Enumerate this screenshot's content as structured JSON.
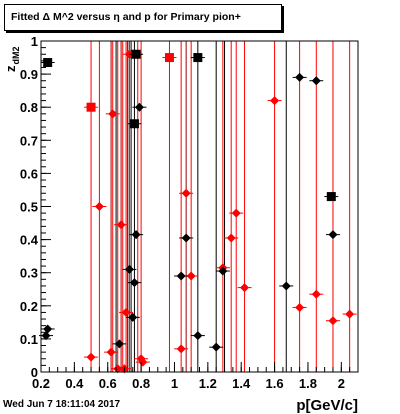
{
  "title": "Fitted Δ M^2 versus η and p for Primary pion+",
  "footer": "Wed Jun  7 18:11:04 2017",
  "chart_data": {
    "type": "scatter",
    "xlabel": "p[GeV/c]",
    "ylabel": "z_dM2",
    "xlim": [
      0.2,
      2.1
    ],
    "ylim": [
      0,
      1
    ],
    "x_ticks": [
      "0.2",
      "0.4",
      "0.6",
      "0.8",
      "1",
      "1.2",
      "1.4",
      "1.6",
      "1.8",
      "2"
    ],
    "y_ticks": [
      "0",
      "0.1",
      "0.2",
      "0.3",
      "0.4",
      "0.5",
      "0.6",
      "0.7",
      "0.8",
      "0.9",
      "1"
    ],
    "colors": {
      "black": "#000000",
      "red": "#ff0000",
      "dark_red": "#a00000"
    },
    "series": [
      {
        "color": "#ff0000",
        "points": [
          {
            "x": 0.5,
            "y": 0.8,
            "m": "square"
          },
          {
            "x": 0.97,
            "y": 0.95,
            "m": "square"
          },
          {
            "x": 0.5,
            "y": 0.045,
            "m": "diamond"
          },
          {
            "x": 0.55,
            "y": 0.5,
            "m": "diamond"
          },
          {
            "x": 0.62,
            "y": 0.06,
            "m": "diamond"
          },
          {
            "x": 0.63,
            "y": 0.78,
            "m": "diamond"
          },
          {
            "x": 0.66,
            "y": 0.01,
            "m": "diamond"
          },
          {
            "x": 0.68,
            "y": 0.445,
            "m": "diamond"
          },
          {
            "x": 0.7,
            "y": 0.01,
            "m": "diamond"
          },
          {
            "x": 0.71,
            "y": 0.18,
            "m": "diamond"
          },
          {
            "x": 0.73,
            "y": 0.96,
            "m": "diamond"
          },
          {
            "x": 0.8,
            "y": 0.04,
            "m": "diamond"
          },
          {
            "x": 0.81,
            "y": 0.03,
            "m": "diamond"
          },
          {
            "x": 1.04,
            "y": 0.07,
            "m": "diamond"
          },
          {
            "x": 1.07,
            "y": 0.54,
            "m": "diamond"
          },
          {
            "x": 1.1,
            "y": 0.29,
            "m": "diamond"
          },
          {
            "x": 1.29,
            "y": 0.315,
            "m": "diamond"
          },
          {
            "x": 1.34,
            "y": 0.405,
            "m": "diamond"
          },
          {
            "x": 1.37,
            "y": 0.48,
            "m": "diamond"
          },
          {
            "x": 1.42,
            "y": 0.255,
            "m": "diamond"
          },
          {
            "x": 1.6,
            "y": 0.82,
            "m": "diamond"
          },
          {
            "x": 1.75,
            "y": 0.195,
            "m": "diamond"
          },
          {
            "x": 1.85,
            "y": 0.235,
            "m": "diamond"
          },
          {
            "x": 1.95,
            "y": 0.155,
            "m": "diamond"
          },
          {
            "x": 2.05,
            "y": 0.175,
            "m": "diamond"
          }
        ]
      },
      {
        "color": "#000000",
        "points": [
          {
            "x": 0.24,
            "y": 0.935,
            "m": "square"
          },
          {
            "x": 0.76,
            "y": 0.75,
            "m": "square"
          },
          {
            "x": 0.77,
            "y": 0.96,
            "m": "square"
          },
          {
            "x": 1.14,
            "y": 0.95,
            "m": "square"
          },
          {
            "x": 1.94,
            "y": 0.53,
            "m": "square"
          },
          {
            "x": 0.23,
            "y": 0.11,
            "m": "diamond"
          },
          {
            "x": 0.24,
            "y": 0.13,
            "m": "diamond"
          },
          {
            "x": 0.67,
            "y": 0.085,
            "m": "diamond"
          },
          {
            "x": 0.73,
            "y": 0.31,
            "m": "diamond"
          },
          {
            "x": 0.75,
            "y": 0.165,
            "m": "diamond"
          },
          {
            "x": 0.76,
            "y": 0.27,
            "m": "diamond"
          },
          {
            "x": 0.77,
            "y": 0.415,
            "m": "diamond"
          },
          {
            "x": 0.79,
            "y": 0.8,
            "m": "diamond"
          },
          {
            "x": 1.04,
            "y": 0.29,
            "m": "diamond"
          },
          {
            "x": 1.07,
            "y": 0.405,
            "m": "diamond"
          },
          {
            "x": 1.14,
            "y": 0.11,
            "m": "diamond"
          },
          {
            "x": 1.25,
            "y": 0.075,
            "m": "diamond"
          },
          {
            "x": 1.29,
            "y": 0.305,
            "m": "diamond"
          },
          {
            "x": 1.67,
            "y": 0.26,
            "m": "diamond"
          },
          {
            "x": 1.75,
            "y": 0.89,
            "m": "diamond"
          },
          {
            "x": 1.85,
            "y": 0.88,
            "m": "diamond"
          },
          {
            "x": 1.95,
            "y": 0.415,
            "m": "diamond"
          }
        ]
      }
    ],
    "vertical_lines": [
      {
        "x": 0.5,
        "color": "#ff0000"
      },
      {
        "x": 0.55,
        "color": "#ff0000"
      },
      {
        "x": 0.62,
        "color": "#a00000"
      },
      {
        "x": 0.63,
        "color": "#ff0000"
      },
      {
        "x": 0.65,
        "color": "#000000"
      },
      {
        "x": 0.66,
        "color": "#ff0000"
      },
      {
        "x": 0.68,
        "color": "#a00000"
      },
      {
        "x": 0.69,
        "color": "#ff0000"
      },
      {
        "x": 0.71,
        "color": "#ff0000"
      },
      {
        "x": 0.72,
        "color": "#000000"
      },
      {
        "x": 0.73,
        "color": "#ff0000"
      },
      {
        "x": 0.74,
        "color": "#000000"
      },
      {
        "x": 0.76,
        "color": "#000000"
      },
      {
        "x": 0.78,
        "color": "#ff0000"
      },
      {
        "x": 0.8,
        "color": "#ff0000"
      },
      {
        "x": 0.97,
        "color": "#ff0000"
      },
      {
        "x": 1.04,
        "color": "#ff0000"
      },
      {
        "x": 1.07,
        "color": "#a00000"
      },
      {
        "x": 1.1,
        "color": "#ff0000"
      },
      {
        "x": 1.14,
        "color": "#000000"
      },
      {
        "x": 1.25,
        "color": "#000000"
      },
      {
        "x": 1.29,
        "color": "#ff0000"
      },
      {
        "x": 1.3,
        "color": "#000000"
      },
      {
        "x": 1.34,
        "color": "#ff0000"
      },
      {
        "x": 1.37,
        "color": "#ff0000"
      },
      {
        "x": 1.42,
        "color": "#ff0000"
      },
      {
        "x": 1.6,
        "color": "#ff0000"
      },
      {
        "x": 1.67,
        "color": "#000000"
      },
      {
        "x": 1.75,
        "color": "#ff0000"
      },
      {
        "x": 1.85,
        "color": "#ff0000"
      },
      {
        "x": 1.95,
        "color": "#ff0000"
      },
      {
        "x": 2.05,
        "color": "#ff0000"
      }
    ],
    "grid": false
  }
}
